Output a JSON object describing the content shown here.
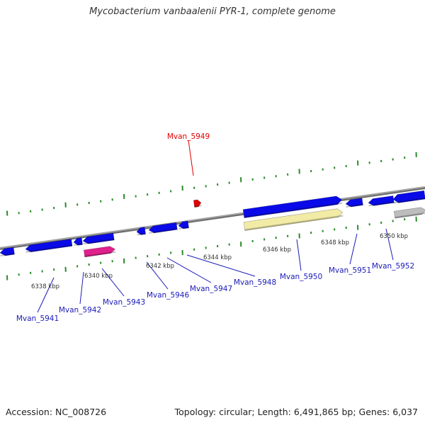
{
  "title": "Mycobacterium vanbaalenii PYR-1, complete genome",
  "footer": {
    "accession": "Accession: NC_008726",
    "genome_info": "Topology: circular; Length: 6,491,865 bp; Genes: 6,037"
  },
  "colors": {
    "gene": "#0a0ae8",
    "highlight": "#e00000",
    "rna": "#e0208c",
    "pseudo": "#f2eba6",
    "other": "#bdbdbd",
    "tick": "#2a8a2a",
    "backbone": "#888888",
    "label": "#1a1ab8"
  },
  "kbp_ticks": [
    "6338 kbp",
    "6340 kbp",
    "6342 kbp",
    "6344 kbp",
    "6346 kbp",
    "6348 kbp",
    "6350 kbp"
  ],
  "genes": [
    {
      "name": "Mvan_5941",
      "strand": "reverse",
      "color": "gene"
    },
    {
      "name": "Mvan_5942",
      "strand": "reverse",
      "color": "gene"
    },
    {
      "name": "Mvan_5943",
      "strand": "forward",
      "color": "rna"
    },
    {
      "name": "Mvan_5946",
      "strand": "reverse",
      "color": "gene"
    },
    {
      "name": "Mvan_5947",
      "strand": "reverse",
      "color": "gene"
    },
    {
      "name": "Mvan_5948",
      "strand": "reverse",
      "color": "gene"
    },
    {
      "name": "Mvan_5949",
      "strand": "forward",
      "color": "highlight",
      "highlighted": true
    },
    {
      "name": "Mvan_5950",
      "strand": "forward",
      "color": "gene"
    },
    {
      "name": "Mvan_5951",
      "strand": "forward",
      "color": "gene"
    },
    {
      "name": "Mvan_5952",
      "strand": "forward",
      "color": "gene"
    }
  ]
}
